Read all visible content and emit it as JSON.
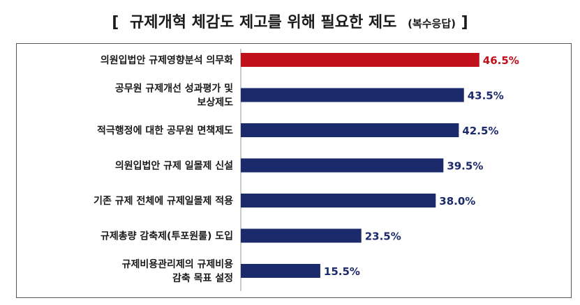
{
  "title": {
    "open_bracket": "[",
    "main": "규제개혁 체감도 제고를 위해 필요한 제도",
    "note": "(복수응답)",
    "close_bracket": "]"
  },
  "colors": {
    "highlight": "#c0101a",
    "bar": "#1b2a6b",
    "axis": "#999999"
  },
  "chart_data": {
    "type": "bar",
    "orientation": "horizontal",
    "title": "규제개혁 체감도 제고를 위해 필요한 제도 (복수응답)",
    "categories": [
      [
        "의원입법안 규제영향분석 의무화"
      ],
      [
        "공무원 규제개선 성과평가 및",
        "보상제도"
      ],
      [
        "적극행정에 대한 공무원 면책제도"
      ],
      [
        "의원입법안 규제 일몰제 신설"
      ],
      [
        "기존 규제 전체에 규제일몰제 적용"
      ],
      [
        "규제총량 감축제(투포원룰) 도입"
      ],
      [
        "규제비용관리제의 규제비용",
        "감축 목표 설정"
      ]
    ],
    "values": [
      46.5,
      43.5,
      42.5,
      39.5,
      38.0,
      23.5,
      15.5
    ],
    "value_labels": [
      "46.5%",
      "43.5%",
      "42.5%",
      "39.5%",
      "38.0%",
      "23.5%",
      "15.5%"
    ],
    "highlight_index": 0,
    "unit": "%",
    "xlim": [
      0,
      50
    ],
    "grid": false,
    "legend": "none"
  }
}
